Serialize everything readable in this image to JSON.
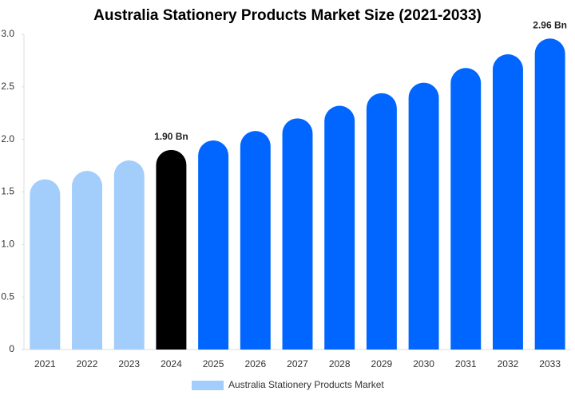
{
  "chart_data": {
    "type": "bar",
    "title": "Australia Stationery Products Market Size (2021-2033)",
    "categories": [
      "2021",
      "2022",
      "2023",
      "2024",
      "2025",
      "2026",
      "2027",
      "2028",
      "2029",
      "2030",
      "2031",
      "2032",
      "2033"
    ],
    "series": [
      {
        "name": "Australia Stationery Products Market",
        "color": "#a3cdfb",
        "colors": [
          "#a3cdfb",
          "#a3cdfb",
          "#a3cdfb",
          "#000000",
          "#0066ff",
          "#0066ff",
          "#0066ff",
          "#0066ff",
          "#0066ff",
          "#0066ff",
          "#0066ff",
          "#0066ff",
          "#0066ff"
        ],
        "values": [
          1.62,
          1.7,
          1.8,
          1.9,
          1.99,
          2.08,
          2.2,
          2.32,
          2.44,
          2.54,
          2.68,
          2.81,
          2.96
        ],
        "value_labels": [
          null,
          null,
          null,
          "1.90 Bn",
          null,
          null,
          null,
          null,
          null,
          null,
          null,
          null,
          "2.96 Bn"
        ]
      }
    ],
    "ylim": [
      0,
      3
    ],
    "yticks": [
      0,
      0.5,
      {
        "value": 1,
        "label": "1.0"
      },
      1.5,
      {
        "value": 2,
        "label": "2.0"
      },
      2.5,
      {
        "value": 3,
        "label": "3.0"
      }
    ],
    "legend": "bottom"
  }
}
